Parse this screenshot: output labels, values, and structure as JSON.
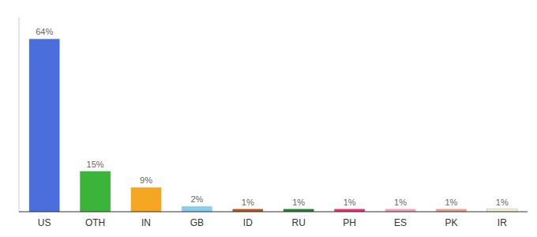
{
  "chart_data": {
    "type": "bar",
    "categories": [
      "US",
      "OTH",
      "IN",
      "GB",
      "ID",
      "RU",
      "PH",
      "ES",
      "PK",
      "IR"
    ],
    "values": [
      64,
      15,
      9,
      2,
      1,
      1,
      1,
      1,
      1,
      1
    ],
    "value_labels": [
      "64%",
      "15%",
      "9%",
      "2%",
      "1%",
      "1%",
      "1%",
      "1%",
      "1%",
      "1%"
    ],
    "colors": [
      "#4a6fdc",
      "#3ab53a",
      "#f5a623",
      "#88ccee",
      "#b05820",
      "#2a7a30",
      "#e83070",
      "#f0a0b8",
      "#e8a090",
      "#f5f0d0"
    ],
    "ylim": [
      0,
      72
    ],
    "data_labels": true,
    "tick_labels": "x",
    "grid": false
  }
}
